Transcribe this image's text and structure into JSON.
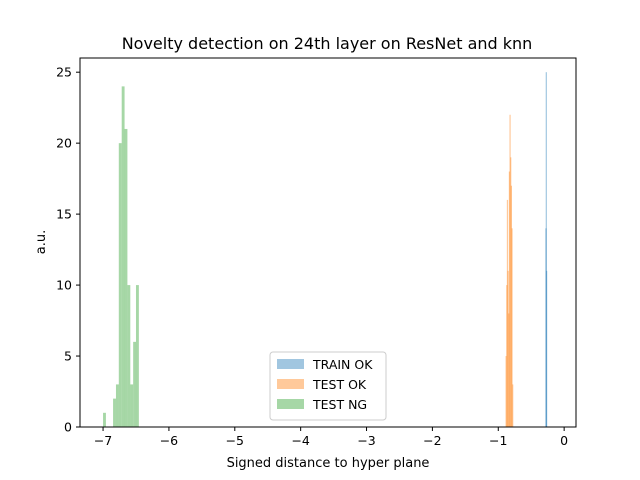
{
  "chart_data": {
    "type": "histogram",
    "title": "Novelty detection on 24th layer on ResNet and knn",
    "xlabel": "Signed distance to hyper plane",
    "ylabel": "a.u.",
    "xlim": [
      -7.35,
      0.18
    ],
    "ylim": [
      0,
      26
    ],
    "x_ticks": [
      -7,
      -6,
      -5,
      -4,
      -3,
      -2,
      -1,
      0
    ],
    "x_tick_labels": [
      "−7",
      "−6",
      "−5",
      "−4",
      "−3",
      "−2",
      "−1",
      "0"
    ],
    "y_ticks": [
      0,
      5,
      10,
      15,
      20,
      25
    ],
    "y_tick_labels": [
      "0",
      "5",
      "10",
      "15",
      "20",
      "25"
    ],
    "grid": false,
    "legend_position": "bottom-center",
    "series": [
      {
        "name": "TRAIN OK",
        "color": "#1f77b4",
        "opacity": 0.42,
        "bin_width": 0.005,
        "bins": [
          {
            "x": -0.285,
            "count": 14
          },
          {
            "x": -0.28,
            "count": 25
          },
          {
            "x": -0.275,
            "count": 11
          }
        ]
      },
      {
        "name": "TEST OK",
        "color": "#ff7f0e",
        "opacity": 0.42,
        "bin_width": 0.009,
        "bins": [
          {
            "x": -0.89,
            "count": 5
          },
          {
            "x": -0.88,
            "count": 10
          },
          {
            "x": -0.87,
            "count": 16
          },
          {
            "x": -0.86,
            "count": 11
          },
          {
            "x": -0.85,
            "count": 8
          },
          {
            "x": -0.84,
            "count": 18
          },
          {
            "x": -0.83,
            "count": 22
          },
          {
            "x": -0.82,
            "count": 19
          },
          {
            "x": -0.81,
            "count": 17
          },
          {
            "x": -0.8,
            "count": 14
          },
          {
            "x": -0.79,
            "count": 3
          }
        ]
      },
      {
        "name": "TEST NG",
        "color": "#2ca02c",
        "opacity": 0.42,
        "bin_width": 0.0435,
        "bins": [
          {
            "x": -7.0,
            "count": 1
          },
          {
            "x": -6.848,
            "count": 2
          },
          {
            "x": -6.804,
            "count": 3
          },
          {
            "x": -6.761,
            "count": 20
          },
          {
            "x": -6.717,
            "count": 24
          },
          {
            "x": -6.674,
            "count": 21
          },
          {
            "x": -6.63,
            "count": 10
          },
          {
            "x": -6.587,
            "count": 3
          },
          {
            "x": -6.543,
            "count": 6
          },
          {
            "x": -6.5,
            "count": 10
          }
        ]
      }
    ]
  }
}
